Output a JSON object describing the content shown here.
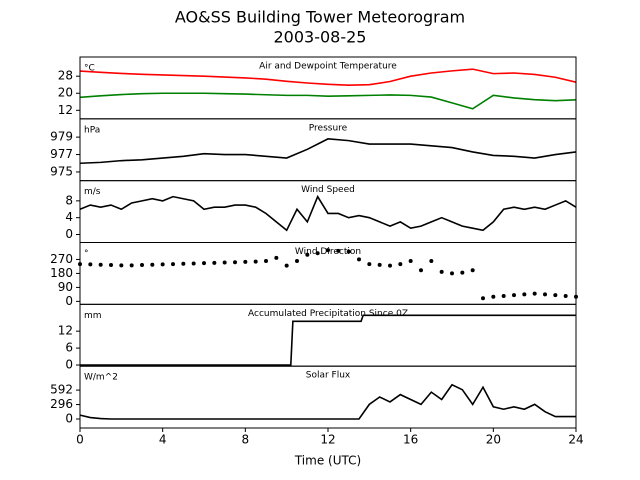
{
  "figure": {
    "title": "AO&SS Building Tower Meteorogram",
    "subtitle": "2003-08-25",
    "xlabel": "Time (UTC)",
    "xlim": [
      0,
      24
    ],
    "xticks": [
      0,
      4,
      8,
      12,
      16,
      20,
      24
    ]
  },
  "chart_data": [
    {
      "type": "line",
      "title": "Air and Dewpoint Temperature",
      "unit": "°C",
      "ylim": [
        8,
        37
      ],
      "yticks": [
        12,
        20,
        28
      ],
      "x": [
        0,
        1,
        2,
        3,
        4,
        5,
        6,
        7,
        8,
        9,
        10,
        11,
        12,
        13,
        14,
        15,
        16,
        17,
        18,
        19,
        20,
        21,
        22,
        23,
        24
      ],
      "series": [
        {
          "color": "#ff0000",
          "values": [
            30.4,
            29.8,
            29.3,
            28.9,
            28.6,
            28.3,
            28.0,
            27.6,
            27.2,
            26.6,
            25.6,
            24.8,
            24.2,
            23.8,
            24.0,
            25.5,
            28.0,
            29.5,
            30.5,
            31.3,
            29.2,
            29.5,
            28.8,
            27.5,
            25.2
          ]
        },
        {
          "color": "#008000",
          "values": [
            18.1,
            18.8,
            19.4,
            19.8,
            20.0,
            20.0,
            20.0,
            19.8,
            19.6,
            19.3,
            19.0,
            19.0,
            18.6,
            18.8,
            19.0,
            19.2,
            19.0,
            18.2,
            15.5,
            12.7,
            19.0,
            17.8,
            17.0,
            16.5,
            16.9
          ]
        }
      ]
    },
    {
      "type": "line",
      "title": "Pressure",
      "unit": "hPa",
      "ylim": [
        974,
        981.1
      ],
      "yticks": [
        975,
        977,
        979
      ],
      "color": "#000000",
      "x": [
        0,
        1,
        2,
        3,
        4,
        5,
        6,
        7,
        8,
        9,
        10,
        11,
        12,
        13,
        14,
        15,
        16,
        17,
        18,
        19,
        20,
        21,
        22,
        23,
        24
      ],
      "values": [
        976.0,
        976.1,
        976.3,
        976.4,
        976.6,
        976.8,
        977.1,
        977.0,
        977.0,
        976.8,
        976.6,
        977.6,
        978.8,
        978.6,
        978.2,
        978.2,
        978.2,
        978.0,
        977.8,
        977.3,
        976.9,
        976.8,
        976.6,
        977.0,
        977.3
      ]
    },
    {
      "type": "line",
      "title": "Wind Speed",
      "unit": "m/s",
      "ylim": [
        -1.9,
        12.8
      ],
      "yticks": [
        0,
        4,
        8
      ],
      "color": "#000000",
      "x": [
        0,
        0.5,
        1,
        1.5,
        2,
        2.5,
        3,
        3.5,
        4,
        4.5,
        5,
        5.5,
        6,
        6.5,
        7,
        7.5,
        8,
        8.5,
        9,
        9.5,
        10,
        10.5,
        11,
        11.5,
        12,
        12.5,
        13,
        13.5,
        14,
        14.5,
        15,
        15.5,
        16,
        16.5,
        17,
        17.5,
        18,
        18.5,
        19,
        19.5,
        20,
        20.5,
        21,
        21.5,
        22,
        22.5,
        23,
        23.5,
        24
      ],
      "values": [
        6,
        7,
        6.5,
        7,
        6,
        7.5,
        8,
        8.5,
        8,
        9,
        8.5,
        8,
        6,
        6.5,
        6.5,
        7,
        7,
        6.5,
        5,
        3,
        1,
        6,
        3,
        9,
        5,
        5,
        4,
        4.5,
        4,
        3,
        2,
        3,
        1.5,
        2,
        3,
        4,
        3,
        2,
        1.5,
        1,
        3,
        6,
        6.5,
        6,
        6.5,
        6,
        7,
        8,
        6.5
      ]
    },
    {
      "type": "scatter",
      "title": "Wind Direction",
      "unit": "°",
      "ylim": [
        -19,
        379
      ],
      "yticks": [
        0,
        90,
        180,
        270
      ],
      "color": "#000000",
      "x": [
        0,
        0.5,
        1,
        1.5,
        2,
        2.5,
        3,
        3.5,
        4,
        4.5,
        5,
        5.5,
        6,
        6.5,
        7,
        7.5,
        8,
        8.5,
        9,
        9.5,
        10,
        10.5,
        11,
        11.5,
        12,
        12.5,
        13,
        13.5,
        14,
        14.5,
        15,
        15.5,
        16,
        16.5,
        17,
        17.5,
        18,
        18.5,
        19,
        19.5,
        20,
        20.5,
        21,
        21.5,
        22,
        22.5,
        23,
        23.5,
        24
      ],
      "values": [
        240,
        238,
        236,
        234,
        232,
        232,
        234,
        236,
        238,
        240,
        242,
        244,
        246,
        248,
        250,
        252,
        254,
        256,
        260,
        280,
        230,
        260,
        300,
        310,
        330,
        325,
        320,
        270,
        240,
        235,
        230,
        240,
        260,
        200,
        260,
        190,
        180,
        185,
        200,
        20,
        30,
        35,
        40,
        45,
        50,
        45,
        40,
        35,
        30
      ]
    },
    {
      "type": "line",
      "title": "Accumulated Precipitation Since 0Z",
      "unit": "mm",
      "ylim": [
        -0.4,
        21.5
      ],
      "yticks": [
        0,
        6,
        12
      ],
      "color": "#000000",
      "x": [
        0,
        10.2,
        10.3,
        13.6,
        13.7,
        24
      ],
      "values": [
        0,
        0,
        15.5,
        15.5,
        17.6,
        17.6
      ]
    },
    {
      "type": "line",
      "title": "Solar Flux",
      "unit": "W/m^2",
      "ylim": [
        -184,
        1082
      ],
      "yticks": [
        0,
        296,
        592
      ],
      "color": "#000000",
      "x": [
        0,
        0.5,
        1,
        1.5,
        2,
        2.5,
        3,
        3.5,
        4,
        4.5,
        5,
        5.5,
        6,
        6.5,
        7,
        7.5,
        8,
        8.5,
        9,
        9.5,
        10,
        10.5,
        11,
        11.5,
        12,
        12.5,
        13,
        13.5,
        14,
        14.5,
        15,
        15.5,
        16,
        16.5,
        17,
        17.5,
        18,
        18.5,
        19,
        19.5,
        20,
        20.5,
        21,
        21.5,
        22,
        22.5,
        23,
        23.5,
        24
      ],
      "values": [
        80,
        30,
        10,
        0,
        0,
        0,
        0,
        0,
        0,
        0,
        0,
        0,
        0,
        0,
        0,
        0,
        0,
        0,
        0,
        0,
        0,
        0,
        0,
        0,
        0,
        0,
        0,
        0,
        300,
        450,
        350,
        500,
        400,
        300,
        550,
        400,
        700,
        600,
        300,
        650,
        250,
        200,
        250,
        200,
        300,
        150,
        50,
        50,
        50
      ]
    }
  ]
}
